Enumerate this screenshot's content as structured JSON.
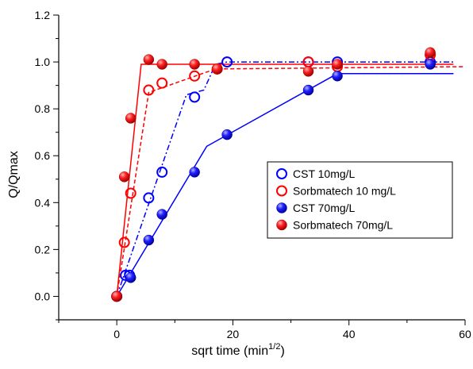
{
  "chart_data": {
    "type": "scatter",
    "xlabel": "sqrt time (min",
    "xlabel_sup": "1/2",
    "xlabel_close": ")",
    "ylabel": "Q/Qmax",
    "xlim": [
      -10,
      60
    ],
    "ylim": [
      -0.1,
      1.2
    ],
    "xticks": [
      0,
      20,
      40,
      60
    ],
    "yticks": [
      0.0,
      0.2,
      0.4,
      0.6,
      0.8,
      1.0,
      1.2
    ],
    "ytick_labels": [
      "0.0",
      "0.2",
      "0.4",
      "0.6",
      "0.8",
      "1.0",
      "1.2"
    ],
    "grid": false,
    "legend_position": "right",
    "series": [
      {
        "name": "CST 10mg/L",
        "color": "#0000ff",
        "marker": "open-circle",
        "line_style": "dash-dot",
        "points": [
          [
            0,
            0
          ],
          [
            1.5,
            0.09
          ],
          [
            2.2,
            0.09
          ],
          [
            5.5,
            0.42
          ],
          [
            7.8,
            0.53
          ],
          [
            13.4,
            0.85
          ],
          [
            19,
            1.0
          ],
          [
            33,
            1.0
          ],
          [
            38,
            1.0
          ],
          [
            54,
            1.0
          ]
        ],
        "fit": [
          [
            0,
            0
          ],
          [
            12,
            0.86
          ],
          [
            15,
            0.88
          ],
          [
            17,
            0.99
          ],
          [
            19,
            1.0
          ],
          [
            58,
            1.0
          ]
        ]
      },
      {
        "name": "Sorbmatech 10 mg/L",
        "color": "#ff0000",
        "marker": "open-circle",
        "line_style": "dashed",
        "points": [
          [
            0,
            0
          ],
          [
            1.3,
            0.23
          ],
          [
            2.4,
            0.44
          ],
          [
            5.5,
            0.88
          ],
          [
            7.8,
            0.91
          ],
          [
            13.4,
            0.94
          ],
          [
            17.3,
            0.97
          ],
          [
            33,
            1.0
          ],
          [
            38,
            0.98
          ],
          [
            54,
            1.03
          ]
        ],
        "fit": [
          [
            0,
            0
          ],
          [
            5.5,
            0.87
          ],
          [
            17,
            0.97
          ],
          [
            60,
            0.98
          ]
        ]
      },
      {
        "name": "CST 70mg/L",
        "color": "#0000ff",
        "marker": "filled-sphere",
        "line_style": "solid",
        "points": [
          [
            0,
            0
          ],
          [
            2.4,
            0.08
          ],
          [
            5.5,
            0.24
          ],
          [
            7.8,
            0.35
          ],
          [
            13.4,
            0.53
          ],
          [
            19,
            0.69
          ],
          [
            33,
            0.88
          ],
          [
            38,
            0.94
          ],
          [
            54,
            0.99
          ]
        ],
        "fit": [
          [
            0,
            0
          ],
          [
            15.5,
            0.64
          ],
          [
            38,
            0.95
          ],
          [
            58,
            0.95
          ]
        ]
      },
      {
        "name": "Sorbmatech 70mg/L",
        "color": "#ff0000",
        "marker": "filled-sphere",
        "line_style": "solid",
        "points": [
          [
            0,
            0
          ],
          [
            1.3,
            0.51
          ],
          [
            2.4,
            0.76
          ],
          [
            5.5,
            1.01
          ],
          [
            7.8,
            0.99
          ],
          [
            13.4,
            0.99
          ],
          [
            17.3,
            0.97
          ],
          [
            33,
            0.96
          ],
          [
            38,
            0.99
          ],
          [
            54,
            1.04
          ]
        ],
        "fit": [
          [
            0,
            0
          ],
          [
            4.2,
            0.99
          ],
          [
            58,
            0.99
          ]
        ]
      }
    ]
  }
}
